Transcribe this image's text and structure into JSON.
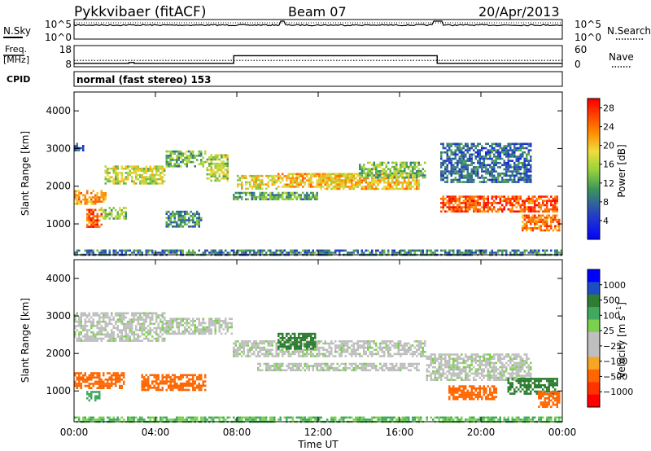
{
  "header": {
    "title": "Pykkvibaer (fitACF)",
    "beam": "Beam 07",
    "date": "20/Apr/2013"
  },
  "noise_panel": {
    "left_label": "N.Sky",
    "left_ticks": [
      "10^5",
      "10^0"
    ],
    "right_ticks": [
      "10^5",
      "10^0"
    ],
    "right_label": "N.Search"
  },
  "freq_panel": {
    "left_label_1": "Freq.",
    "left_label_2": "[MHz]",
    "left_ticks": [
      "18",
      "8"
    ],
    "right_ticks": [
      "60",
      "0"
    ],
    "right_label": "Nave",
    "freq_steps": [
      {
        "time_h": 0,
        "mhz": 9.6
      },
      {
        "time_h": 2.7,
        "mhz": 10.0
      },
      {
        "time_h": 2.95,
        "mhz": 9.6
      },
      {
        "time_h": 7.85,
        "mhz": 13.2
      },
      {
        "time_h": 17.85,
        "mhz": 9.6
      },
      {
        "time_h": 24,
        "mhz": 9.6
      }
    ],
    "nave_level": 18
  },
  "cpid": {
    "label": "CPID",
    "text": "normal (fast stereo) 153"
  },
  "chart_data": [
    {
      "type": "heatmap",
      "title": "",
      "xlabel": "",
      "ylabel": "Slant Range [km]",
      "xlim": [
        0,
        24
      ],
      "ylim": [
        180,
        4500
      ],
      "yticks": [
        "1000",
        "2000",
        "3000",
        "4000"
      ],
      "colorbar": {
        "label": "Power [dB]",
        "ticks": [
          "4",
          "8",
          "12",
          "16",
          "20",
          "24",
          "28"
        ],
        "range": [
          0,
          30
        ]
      },
      "echo_regions": [
        {
          "t0": 0.0,
          "t1": 0.5,
          "r0": 2950,
          "r1": 3150,
          "power": 6
        },
        {
          "t0": 0.0,
          "t1": 1.6,
          "r0": 1550,
          "r1": 1900,
          "power": 22
        },
        {
          "t0": 0.6,
          "t1": 1.4,
          "r0": 900,
          "r1": 1400,
          "power": 26
        },
        {
          "t0": 1.3,
          "t1": 2.6,
          "r0": 1150,
          "r1": 1450,
          "power": 14
        },
        {
          "t0": 1.5,
          "t1": 4.5,
          "r0": 2050,
          "r1": 2550,
          "power": 17
        },
        {
          "t0": 4.5,
          "t1": 6.5,
          "r0": 2550,
          "r1": 2950,
          "power": 13
        },
        {
          "t0": 6.5,
          "t1": 7.6,
          "r0": 2150,
          "r1": 2850,
          "power": 16
        },
        {
          "t0": 4.5,
          "t1": 6.2,
          "r0": 950,
          "r1": 1350,
          "power": 10
        },
        {
          "t0": 8.0,
          "t1": 10.0,
          "r0": 1950,
          "r1": 2300,
          "power": 18
        },
        {
          "t0": 7.8,
          "t1": 12.0,
          "r0": 1650,
          "r1": 1850,
          "power": 12
        },
        {
          "t0": 10.0,
          "t1": 14.0,
          "r0": 2000,
          "r1": 2350,
          "power": 21
        },
        {
          "t0": 12.0,
          "t1": 17.0,
          "r0": 1950,
          "r1": 2350,
          "power": 20
        },
        {
          "t0": 14.0,
          "t1": 17.3,
          "r0": 2250,
          "r1": 2650,
          "power": 14
        },
        {
          "t0": 18.0,
          "t1": 23.8,
          "r0": 1350,
          "r1": 1750,
          "power": 26
        },
        {
          "t0": 18.0,
          "t1": 22.5,
          "r0": 2100,
          "r1": 3150,
          "power": 8
        },
        {
          "t0": 22.0,
          "t1": 23.9,
          "r0": 850,
          "r1": 1250,
          "power": 24
        },
        {
          "t0": 0.0,
          "t1": 24.0,
          "r0": 200,
          "r1": 320,
          "power": 9
        }
      ]
    },
    {
      "type": "heatmap",
      "title": "",
      "xlabel": "Time UT",
      "ylabel": "Slant Range [km]",
      "xlim": [
        0,
        24
      ],
      "ylim": [
        180,
        4500
      ],
      "xticks": [
        "00:00",
        "04:00",
        "08:00",
        "12:00",
        "16:00",
        "20:00",
        "00:00"
      ],
      "yticks": [
        "1000",
        "2000",
        "3000",
        "4000"
      ],
      "colorbar": {
        "label": "Velocity [m s^-1]",
        "ticks": [
          "1000",
          "500",
          "100",
          "25",
          "−25",
          "−100",
          "−500",
          "−1000"
        ]
      },
      "echo_regions": [
        {
          "t0": 0.0,
          "t1": 4.5,
          "r0": 2350,
          "r1": 3100,
          "velocity": 0
        },
        {
          "t0": 0.0,
          "t1": 2.5,
          "r0": 1050,
          "r1": 1500,
          "velocity": -300
        },
        {
          "t0": 0.6,
          "t1": 1.3,
          "r0": 750,
          "r1": 1000,
          "velocity": 200
        },
        {
          "t0": 3.3,
          "t1": 6.5,
          "r0": 1000,
          "r1": 1450,
          "velocity": -300
        },
        {
          "t0": 4.5,
          "t1": 7.8,
          "r0": 2550,
          "r1": 2950,
          "velocity": 0
        },
        {
          "t0": 7.8,
          "t1": 17.3,
          "r0": 1900,
          "r1": 2350,
          "velocity": 0
        },
        {
          "t0": 10.0,
          "t1": 11.9,
          "r0": 2150,
          "r1": 2550,
          "velocity": 300
        },
        {
          "t0": 9.0,
          "t1": 17.0,
          "r0": 1550,
          "r1": 1750,
          "velocity": 0
        },
        {
          "t0": 17.3,
          "t1": 22.5,
          "r0": 1300,
          "r1": 2000,
          "velocity": 0
        },
        {
          "t0": 18.4,
          "t1": 20.8,
          "r0": 800,
          "r1": 1150,
          "velocity": -300
        },
        {
          "t0": 21.3,
          "t1": 23.8,
          "r0": 900,
          "r1": 1350,
          "velocity": 400
        },
        {
          "t0": 22.8,
          "t1": 23.9,
          "r0": 600,
          "r1": 1000,
          "velocity": -400
        },
        {
          "t0": 0.0,
          "t1": 24.0,
          "r0": 200,
          "r1": 320,
          "velocity": 100
        }
      ]
    }
  ],
  "colors": {
    "velocity": [
      "#0000ff",
      "#1c4ec2",
      "#2e7d32",
      "#41a85f",
      "#7bd14d",
      "#bfbfbf",
      "#bfbfbf",
      "#f5a623",
      "#ff6600",
      "#ff3300",
      "#ff0000"
    ]
  }
}
